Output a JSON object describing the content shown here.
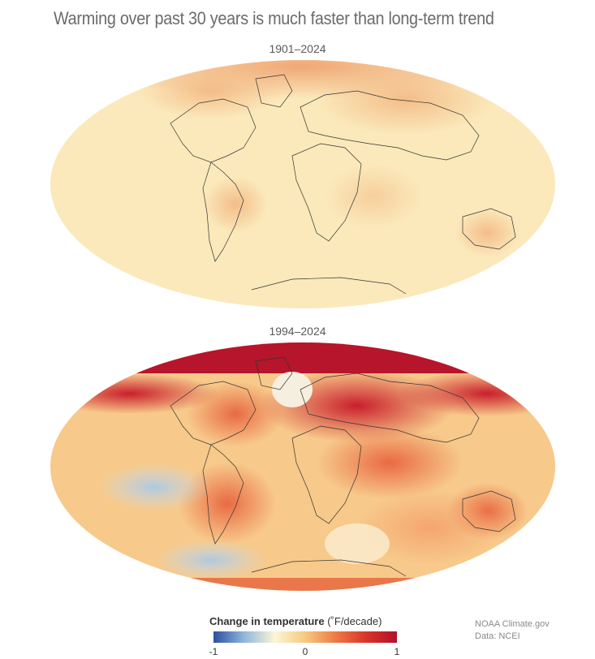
{
  "title": "Warming over past 30 years is much faster than long-term trend",
  "maps": [
    {
      "label": "1901–2024"
    },
    {
      "label": "1994–2024"
    }
  ],
  "legend": {
    "title": "Change in temperature",
    "unit": "(˚F/decade)",
    "min_label": "-1",
    "mid_label": "0",
    "max_label": "1",
    "colors": [
      "#2c4fa0",
      "#8fb6dd",
      "#fbf6d6",
      "#f7c97f",
      "#ee7a45",
      "#d8342a",
      "#b2102c"
    ]
  },
  "source": {
    "line1": "NOAA Climate.gov",
    "line2": "Data: NCEI"
  }
}
